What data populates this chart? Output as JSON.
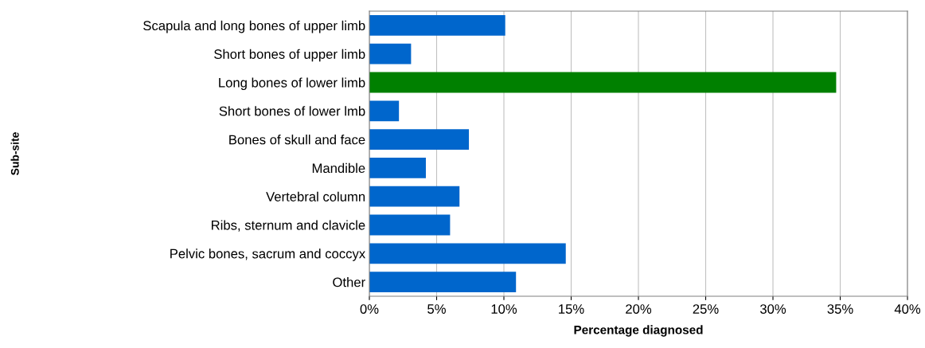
{
  "chart_data": {
    "type": "bar",
    "orientation": "horizontal",
    "xlabel": "Percentage diagnosed",
    "annotations": [
      "Sub-site"
    ],
    "categories": [
      "Scapula and long bones of upper limb",
      "Short bones of upper limb",
      "Long bones of lower limb",
      "Short bones of lower lmb",
      "Bones of skull and face",
      "Mandible",
      "Vertebral column",
      "Ribs, sternum and clavicle",
      "Pelvic bones, sacrum and coccyx",
      "Other"
    ],
    "values": [
      10.1,
      3.1,
      34.7,
      2.2,
      7.4,
      4.2,
      6.7,
      6.0,
      14.6,
      10.9
    ],
    "colors": [
      "#0066cc",
      "#0066cc",
      "#008000",
      "#0066cc",
      "#0066cc",
      "#0066cc",
      "#0066cc",
      "#0066cc",
      "#0066cc",
      "#0066cc"
    ],
    "xlim": [
      0,
      40
    ],
    "xticks": [
      {
        "value": 0,
        "label": "0%"
      },
      {
        "value": 5,
        "label": "5%"
      },
      {
        "value": 10,
        "label": "10%"
      },
      {
        "value": 15,
        "label": "15%"
      },
      {
        "value": 20,
        "label": "20%"
      },
      {
        "value": 25,
        "label": "25%"
      },
      {
        "value": 30,
        "label": "30%"
      },
      {
        "value": 35,
        "label": "35%"
      },
      {
        "value": 40,
        "label": "40%"
      }
    ],
    "grid": "x",
    "legend": false
  }
}
